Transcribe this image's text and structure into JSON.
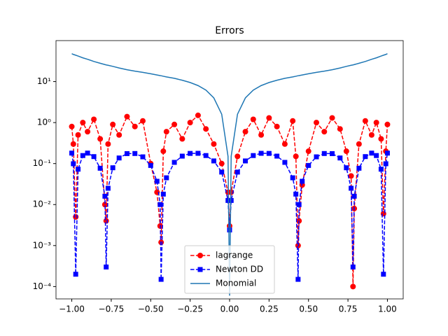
{
  "chart_data": {
    "type": "line",
    "title": "Errors",
    "yscale": "log",
    "legend": "lower center",
    "x": [
      -1,
      -0.99,
      -0.975,
      -0.96,
      -0.93,
      -0.9,
      -0.86,
      -0.82,
      -0.79,
      -0.782,
      -0.77,
      -0.74,
      -0.7,
      -0.65,
      -0.6,
      -0.55,
      -0.5,
      -0.46,
      -0.44,
      -0.434,
      -0.42,
      -0.4,
      -0.35,
      -0.3,
      -0.25,
      -0.2,
      -0.15,
      -0.1,
      -0.05,
      -0.01,
      0,
      0.01,
      0.05,
      0.1,
      0.15,
      0.2,
      0.25,
      0.3,
      0.35,
      0.4,
      0.42,
      0.434,
      0.44,
      0.46,
      0.5,
      0.55,
      0.6,
      0.65,
      0.7,
      0.74,
      0.77,
      0.782,
      0.79,
      0.82,
      0.86,
      0.9,
      0.93,
      0.96,
      0.975,
      0.99,
      1
    ],
    "series": [
      {
        "name": "lagrange",
        "color": "#ff0000",
        "marker": "circle",
        "dashed": true,
        "values": [
          0.8,
          0.3,
          0.005,
          0.5,
          1.0,
          0.6,
          1.2,
          0.4,
          0.01,
          0.004,
          0.3,
          0.9,
          0.5,
          1.4,
          0.8,
          1.1,
          0.1,
          0.02,
          0.003,
          0.0012,
          0.2,
          0.6,
          0.9,
          0.4,
          1.0,
          1.5,
          0.7,
          0.3,
          0.1,
          0.02,
          0.003,
          0.02,
          0.15,
          0.6,
          1.2,
          0.5,
          1.3,
          0.8,
          0.3,
          1.1,
          0.15,
          0.001,
          0.004,
          0.03,
          0.2,
          1.0,
          0.6,
          1.3,
          0.7,
          0.2,
          0.05,
          0.0001,
          0.008,
          0.3,
          1.1,
          0.5,
          1.0,
          0.4,
          0.006,
          0.2,
          0.9
        ]
      },
      {
        "name": "Newton DD",
        "color": "#0000ff",
        "marker": "square",
        "dashed": true,
        "values": [
          0.18,
          0.099,
          0.0002,
          0.073,
          0.157,
          0.18,
          0.148,
          0.077,
          0.016,
          0.0003,
          0.025,
          0.079,
          0.137,
          0.175,
          0.176,
          0.146,
          0.09,
          0.037,
          0.01,
          0.00015,
          0.018,
          0.045,
          0.107,
          0.152,
          0.177,
          0.178,
          0.157,
          0.116,
          0.062,
          0.0126,
          0.0024,
          0.0126,
          0.062,
          0.116,
          0.157,
          0.178,
          0.177,
          0.152,
          0.107,
          0.045,
          0.018,
          0.00015,
          0.01,
          0.037,
          0.09,
          0.146,
          0.176,
          0.175,
          0.137,
          0.079,
          0.025,
          0.0003,
          0.016,
          0.077,
          0.148,
          0.18,
          0.157,
          0.073,
          0.0002,
          0.099,
          0.18
        ]
      },
      {
        "name": "Monomial",
        "color": "#1f77b4",
        "marker": "none",
        "dashed": false,
        "values": [
          48,
          46,
          44,
          42,
          38,
          35,
          31,
          28,
          26,
          25.5,
          25,
          23.5,
          21.5,
          19.5,
          18,
          16.8,
          15.5,
          14.5,
          14,
          13.9,
          13.5,
          13,
          12,
          10.8,
          9.5,
          8,
          6.2,
          4,
          1.6,
          0.15,
          6e-05,
          0.15,
          1.6,
          4,
          6.2,
          8,
          9.5,
          10.8,
          12,
          13,
          13.5,
          13.9,
          14,
          14.5,
          15.5,
          16.8,
          18,
          19.5,
          21.5,
          23.5,
          25,
          25.5,
          26,
          28,
          31,
          35,
          38,
          42,
          44,
          46,
          48
        ]
      }
    ],
    "xlim": [
      -1.1,
      1.1
    ],
    "ylim": [
      5e-05,
      100
    ],
    "xticks": [
      {
        "value": -1,
        "label": "−1.00"
      },
      {
        "value": -0.75,
        "label": "−0.75"
      },
      {
        "value": -0.5,
        "label": "−0.50"
      },
      {
        "value": -0.25,
        "label": "−0.25"
      },
      {
        "value": 0,
        "label": "0.00"
      },
      {
        "value": 0.25,
        "label": "0.25"
      },
      {
        "value": 0.5,
        "label": "0.50"
      },
      {
        "value": 0.75,
        "label": "0.75"
      },
      {
        "value": 1,
        "label": "1.00"
      }
    ],
    "yticks": [
      {
        "value": 0.0001,
        "label": "10⁻⁴"
      },
      {
        "value": 0.001,
        "label": "10⁻³"
      },
      {
        "value": 0.01,
        "label": "10⁻²"
      },
      {
        "value": 0.1,
        "label": "10⁻¹"
      },
      {
        "value": 1,
        "label": "10⁰"
      },
      {
        "value": 10,
        "label": "10¹"
      }
    ]
  }
}
